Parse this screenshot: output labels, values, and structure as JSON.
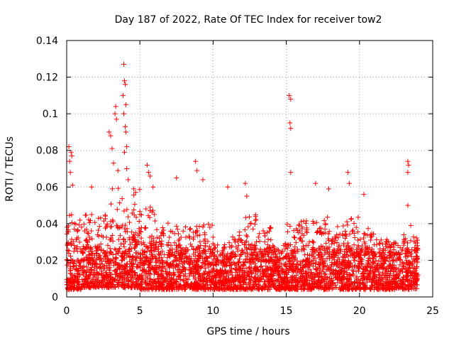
{
  "chart_data": {
    "type": "scatter",
    "title": "Day 187 of 2022, Rate Of TEC Index for receiver tow2",
    "xlabel": "GPS time / hours",
    "ylabel": "ROTI / TECUs",
    "xlim": [
      0,
      25
    ],
    "ylim": [
      0,
      0.14
    ],
    "xticks": [
      0,
      5,
      10,
      15,
      20,
      25
    ],
    "yticks": [
      0,
      0.02,
      0.04,
      0.06,
      0.08,
      0.1,
      0.12,
      0.14
    ],
    "xtick_labels": [
      "0",
      "5",
      "10",
      "15",
      "20",
      "25"
    ],
    "ytick_labels": [
      "0",
      "0.02",
      "0.04",
      "0.06",
      "0.08",
      "0.1",
      "0.12",
      "0.14"
    ],
    "grid": true,
    "marker": "+",
    "color": "#ff0000",
    "series": [
      {
        "name": "ROTI",
        "notable_points": [
          {
            "x": 0.15,
            "y": 0.082
          },
          {
            "x": 0.3,
            "y": 0.079
          },
          {
            "x": 0.35,
            "y": 0.077
          },
          {
            "x": 0.2,
            "y": 0.074
          },
          {
            "x": 0.25,
            "y": 0.068
          },
          {
            "x": 0.4,
            "y": 0.061
          },
          {
            "x": 1.7,
            "y": 0.06
          },
          {
            "x": 2.9,
            "y": 0.09
          },
          {
            "x": 3.0,
            "y": 0.088
          },
          {
            "x": 3.1,
            "y": 0.081
          },
          {
            "x": 3.3,
            "y": 0.1
          },
          {
            "x": 3.35,
            "y": 0.104
          },
          {
            "x": 3.4,
            "y": 0.097
          },
          {
            "x": 3.2,
            "y": 0.073
          },
          {
            "x": 3.5,
            "y": 0.069
          },
          {
            "x": 3.9,
            "y": 0.127
          },
          {
            "x": 3.95,
            "y": 0.118
          },
          {
            "x": 4.0,
            "y": 0.116
          },
          {
            "x": 3.85,
            "y": 0.11
          },
          {
            "x": 4.05,
            "y": 0.105
          },
          {
            "x": 3.9,
            "y": 0.1
          },
          {
            "x": 4.0,
            "y": 0.093
          },
          {
            "x": 4.05,
            "y": 0.09
          },
          {
            "x": 4.1,
            "y": 0.082
          },
          {
            "x": 3.95,
            "y": 0.079
          },
          {
            "x": 4.1,
            "y": 0.07
          },
          {
            "x": 4.2,
            "y": 0.064
          },
          {
            "x": 5.5,
            "y": 0.072
          },
          {
            "x": 5.6,
            "y": 0.068
          },
          {
            "x": 5.7,
            "y": 0.066
          },
          {
            "x": 5.9,
            "y": 0.06
          },
          {
            "x": 7.5,
            "y": 0.065
          },
          {
            "x": 8.8,
            "y": 0.074
          },
          {
            "x": 8.9,
            "y": 0.069
          },
          {
            "x": 9.3,
            "y": 0.064
          },
          {
            "x": 11.0,
            "y": 0.06
          },
          {
            "x": 12.2,
            "y": 0.062
          },
          {
            "x": 12.3,
            "y": 0.055
          },
          {
            "x": 15.2,
            "y": 0.11
          },
          {
            "x": 15.3,
            "y": 0.108
          },
          {
            "x": 15.25,
            "y": 0.095
          },
          {
            "x": 15.3,
            "y": 0.092
          },
          {
            "x": 15.3,
            "y": 0.068
          },
          {
            "x": 17.0,
            "y": 0.062
          },
          {
            "x": 17.9,
            "y": 0.059
          },
          {
            "x": 19.2,
            "y": 0.068
          },
          {
            "x": 19.3,
            "y": 0.062
          },
          {
            "x": 20.3,
            "y": 0.056
          },
          {
            "x": 23.3,
            "y": 0.074
          },
          {
            "x": 23.35,
            "y": 0.072
          },
          {
            "x": 23.3,
            "y": 0.068
          },
          {
            "x": 23.3,
            "y": 0.05
          },
          {
            "x": 23.5,
            "y": 0.039
          }
        ],
        "hourly_envelope": [
          {
            "hour": 0,
            "base_min": 0.004,
            "base_max": 0.03,
            "upper_max": 0.045
          },
          {
            "hour": 1,
            "base_min": 0.005,
            "base_max": 0.028,
            "upper_max": 0.045
          },
          {
            "hour": 2,
            "base_min": 0.005,
            "base_max": 0.028,
            "upper_max": 0.045
          },
          {
            "hour": 3,
            "base_min": 0.005,
            "base_max": 0.032,
            "upper_max": 0.06
          },
          {
            "hour": 4,
            "base_min": 0.005,
            "base_max": 0.034,
            "upper_max": 0.06
          },
          {
            "hour": 5,
            "base_min": 0.004,
            "base_max": 0.03,
            "upper_max": 0.05
          },
          {
            "hour": 6,
            "base_min": 0.004,
            "base_max": 0.028,
            "upper_max": 0.042
          },
          {
            "hour": 7,
            "base_min": 0.004,
            "base_max": 0.026,
            "upper_max": 0.04
          },
          {
            "hour": 8,
            "base_min": 0.004,
            "base_max": 0.026,
            "upper_max": 0.04
          },
          {
            "hour": 9,
            "base_min": 0.004,
            "base_max": 0.026,
            "upper_max": 0.04
          },
          {
            "hour": 10,
            "base_min": 0.004,
            "base_max": 0.022,
            "upper_max": 0.03
          },
          {
            "hour": 11,
            "base_min": 0.004,
            "base_max": 0.024,
            "upper_max": 0.036
          },
          {
            "hour": 12,
            "base_min": 0.004,
            "base_max": 0.028,
            "upper_max": 0.045
          },
          {
            "hour": 13,
            "base_min": 0.004,
            "base_max": 0.026,
            "upper_max": 0.038
          },
          {
            "hour": 14,
            "base_min": 0.004,
            "base_max": 0.022,
            "upper_max": 0.03
          },
          {
            "hour": 15,
            "base_min": 0.004,
            "base_max": 0.026,
            "upper_max": 0.04
          },
          {
            "hour": 16,
            "base_min": 0.004,
            "base_max": 0.028,
            "upper_max": 0.042
          },
          {
            "hour": 17,
            "base_min": 0.004,
            "base_max": 0.028,
            "upper_max": 0.045
          },
          {
            "hour": 18,
            "base_min": 0.004,
            "base_max": 0.026,
            "upper_max": 0.04
          },
          {
            "hour": 19,
            "base_min": 0.004,
            "base_max": 0.028,
            "upper_max": 0.045
          },
          {
            "hour": 20,
            "base_min": 0.004,
            "base_max": 0.026,
            "upper_max": 0.038
          },
          {
            "hour": 21,
            "base_min": 0.004,
            "base_max": 0.024,
            "upper_max": 0.032
          },
          {
            "hour": 22,
            "base_min": 0.004,
            "base_max": 0.024,
            "upper_max": 0.03
          },
          {
            "hour": 23,
            "base_min": 0.004,
            "base_max": 0.026,
            "upper_max": 0.035
          }
        ]
      }
    ]
  }
}
